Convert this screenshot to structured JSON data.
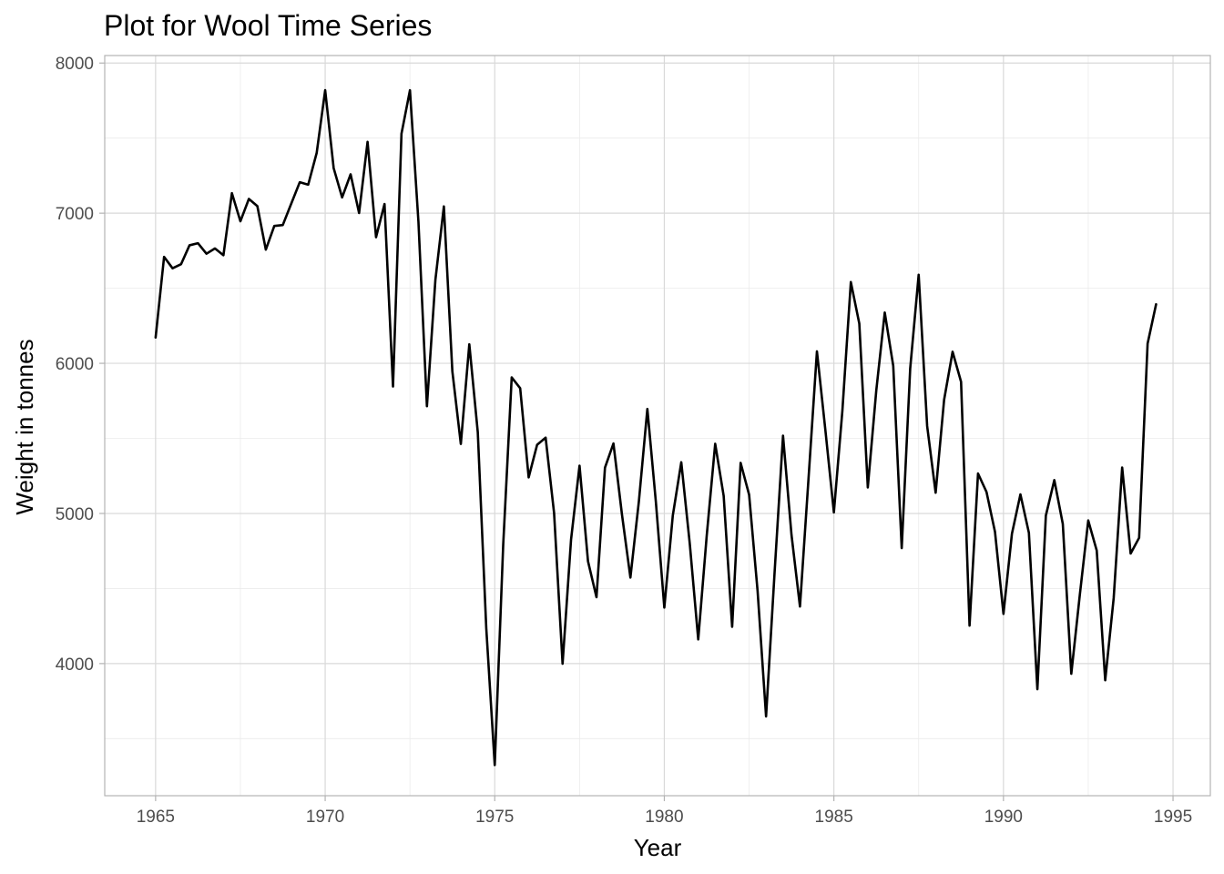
{
  "chart_data": {
    "type": "line",
    "title": "Plot for Wool Time Series",
    "xlabel": "Year",
    "ylabel": "Weight in tonnes",
    "xlim": [
      1963.5,
      1996.1
    ],
    "ylim": [
      3120,
      8050
    ],
    "x_ticks": [
      1965,
      1970,
      1975,
      1980,
      1985,
      1990,
      1995
    ],
    "y_ticks": [
      4000,
      5000,
      6000,
      7000,
      8000
    ],
    "grid": true,
    "legend": "none",
    "line_color": "#000000",
    "x_start": 1965.0,
    "x_step": 0.25,
    "series": [
      {
        "values": [
          6172,
          6709,
          6633,
          6660,
          6786,
          6800,
          6730,
          6765,
          6720,
          7133,
          6946,
          7095,
          7047,
          6757,
          6915,
          6921,
          7064,
          7206,
          7190,
          7402,
          7819,
          7300,
          7105,
          7259,
          7001,
          7475,
          6840,
          7061,
          5845,
          7529,
          7819,
          6943,
          5714,
          6556,
          7045,
          5947,
          5463,
          6127,
          5540,
          4235,
          3324,
          4793,
          5906,
          5834,
          5240,
          5458,
          5505,
          5002,
          3999,
          4826,
          5318,
          4681,
          4442,
          5305,
          5466,
          4995,
          4573,
          5081,
          5696,
          5079,
          4373,
          4986,
          5341,
          4800,
          4161,
          4851,
          5464,
          5117,
          4245,
          5337,
          5125,
          4484,
          3648,
          4602,
          5518,
          4857,
          4380,
          5225,
          6080,
          5553,
          5007,
          5683,
          6541,
          6264,
          5173,
          5819,
          6338,
          5983,
          4769,
          5965,
          6590,
          5582,
          5138,
          5757,
          6077,
          5877,
          4253,
          5266,
          5143,
          4878,
          4331,
          4865,
          5127,
          4871,
          3829,
          4986,
          5222,
          4930,
          3932,
          4455,
          4953,
          4753,
          3889,
          4436,
          5306,
          4733,
          4838,
          6131,
          6393
        ]
      }
    ]
  }
}
